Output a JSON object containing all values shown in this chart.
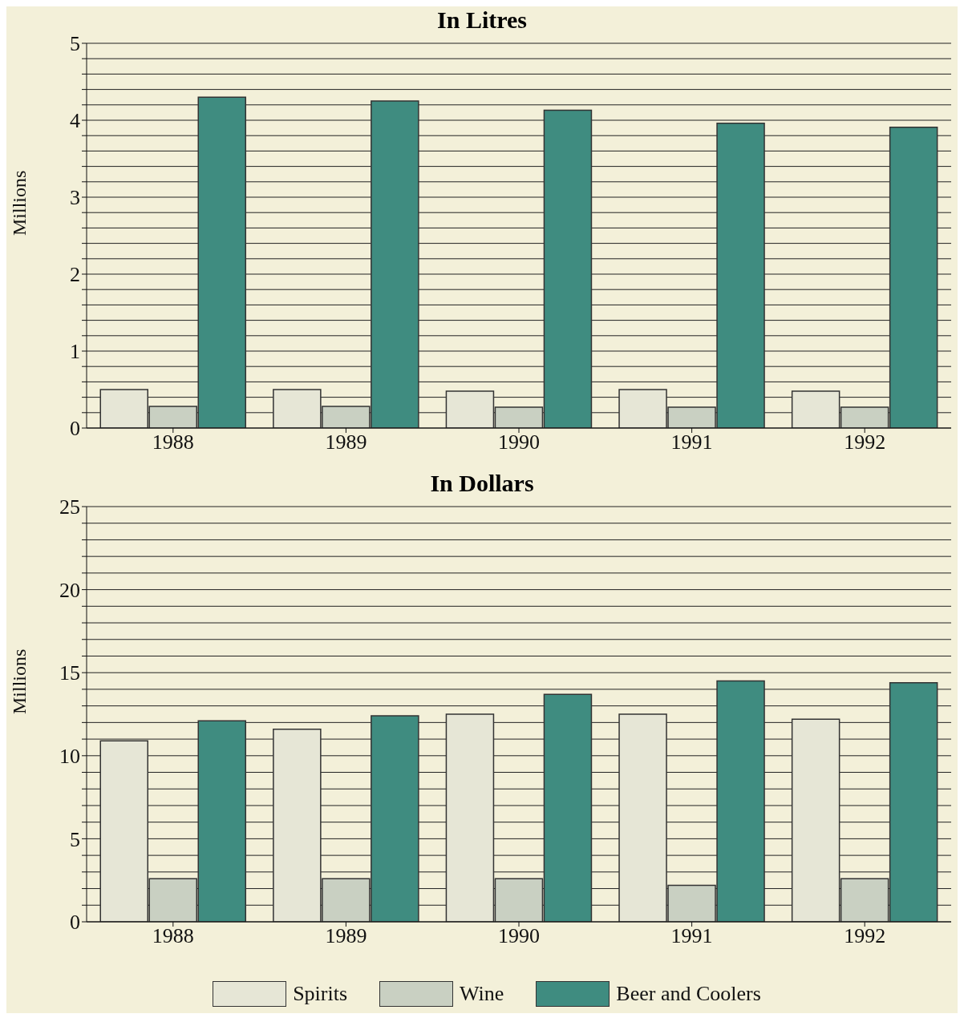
{
  "chart_data": [
    {
      "type": "bar",
      "title": "In Litres",
      "ylabel": "Millions",
      "categories": [
        "1988",
        "1989",
        "1990",
        "1991",
        "1992"
      ],
      "series": [
        {
          "color": "#e6e6d6",
          "values": [
            0.5,
            0.5,
            0.48,
            0.5,
            0.48
          ]
        },
        {
          "color": "#c9d0c2",
          "values": [
            0.28,
            0.28,
            0.27,
            0.27,
            0.27
          ]
        },
        {
          "color": "#3f8c80",
          "values": [
            4.3,
            4.25,
            4.13,
            3.96,
            3.91
          ]
        }
      ],
      "ylim": [
        0,
        5
      ],
      "yticks": [
        0,
        {
          "value": 0.2,
          "label": null
        },
        {
          "value": 0.4,
          "label": null
        },
        {
          "value": 0.6,
          "label": null
        },
        {
          "value": 0.8,
          "label": null
        },
        1,
        {
          "value": 1.2,
          "label": null
        },
        {
          "value": 1.4,
          "label": null
        },
        {
          "value": 1.6,
          "label": null
        },
        {
          "value": 1.8,
          "label": null
        },
        2,
        {
          "value": 2.2,
          "label": null
        },
        {
          "value": 2.4,
          "label": null
        },
        {
          "value": 2.6,
          "label": null
        },
        {
          "value": 2.8,
          "label": null
        },
        3,
        {
          "value": 3.2,
          "label": null
        },
        {
          "value": 3.4,
          "label": null
        },
        {
          "value": 3.6,
          "label": null
        },
        {
          "value": 3.8,
          "label": null
        },
        4,
        {
          "value": 4.2,
          "label": null
        },
        {
          "value": 4.4,
          "label": null
        },
        {
          "value": 4.6,
          "label": null
        },
        {
          "value": 4.8,
          "label": null
        },
        5
      ],
      "grid": "y",
      "legend": false
    },
    {
      "type": "bar",
      "title": "In Dollars",
      "ylabel": "Millions",
      "categories": [
        "1988",
        "1989",
        "1990",
        "1991",
        "1992"
      ],
      "series": [
        {
          "name": "Spirits",
          "color": "#e6e6d6",
          "values": [
            10.9,
            11.6,
            12.5,
            12.5,
            12.2
          ]
        },
        {
          "name": "Wine",
          "color": "#c9d0c2",
          "values": [
            2.6,
            2.6,
            2.6,
            2.2,
            2.6
          ]
        },
        {
          "name": "Beer and Coolers",
          "color": "#3f8c80",
          "values": [
            12.1,
            12.4,
            13.7,
            14.5,
            14.4
          ]
        }
      ],
      "ylim": [
        0,
        25
      ],
      "yticks": [
        0,
        {
          "value": 1,
          "label": null
        },
        {
          "value": 2,
          "label": null
        },
        {
          "value": 3,
          "label": null
        },
        {
          "value": 4,
          "label": null
        },
        5,
        {
          "value": 6,
          "label": null
        },
        {
          "value": 7,
          "label": null
        },
        {
          "value": 8,
          "label": null
        },
        {
          "value": 9,
          "label": null
        },
        10,
        {
          "value": 11,
          "label": null
        },
        {
          "value": 12,
          "label": null
        },
        {
          "value": 13,
          "label": null
        },
        {
          "value": 14,
          "label": null
        },
        15,
        {
          "value": 16,
          "label": null
        },
        {
          "value": 17,
          "label": null
        },
        {
          "value": 18,
          "label": null
        },
        {
          "value": 19,
          "label": null
        },
        20,
        {
          "value": 21,
          "label": null
        },
        {
          "value": 22,
          "label": null
        },
        {
          "value": 23,
          "label": null
        },
        {
          "value": 24,
          "label": null
        },
        25
      ],
      "grid": "y",
      "legend": "bottom"
    }
  ]
}
